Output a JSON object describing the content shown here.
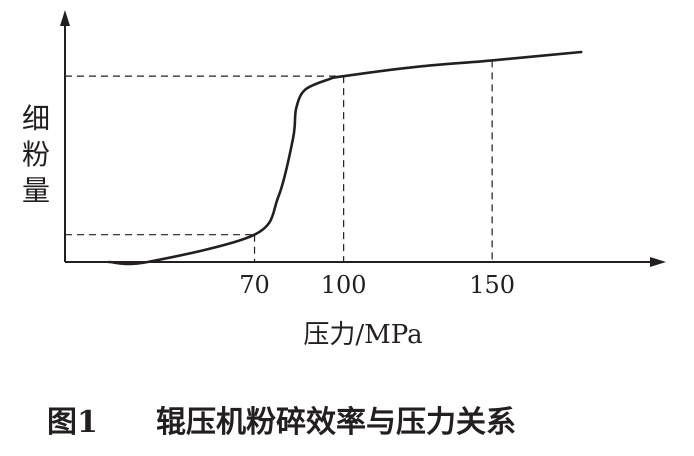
{
  "chart_data": {
    "type": "line",
    "title": "",
    "xlabel": "压力/MPa",
    "ylabel": "细粉量",
    "xticks": [
      "70",
      "100",
      "150"
    ],
    "y_ticks_shown": false,
    "grid": false,
    "xlim": [
      5,
      205
    ],
    "ylim": [
      0,
      1
    ],
    "series": [
      {
        "x": [
          21,
          34,
          70,
          78,
          83,
          84,
          87,
          95,
          100,
          125,
          150,
          180
        ],
        "y": [
          0.0,
          0.0,
          0.13,
          0.31,
          0.59,
          0.73,
          0.82,
          0.87,
          0.885,
          0.93,
          0.96,
          1.0
        ]
      }
    ],
    "guides": [
      {
        "x": 70,
        "y": 0.13
      },
      {
        "x": 100,
        "y": 0.885
      },
      {
        "x": 150,
        "y": 0.96
      }
    ]
  },
  "caption": {
    "figure_label": "图1",
    "text": "辊压机粉碎效率与压力关系"
  },
  "colors": {
    "ink": "#231f20"
  }
}
